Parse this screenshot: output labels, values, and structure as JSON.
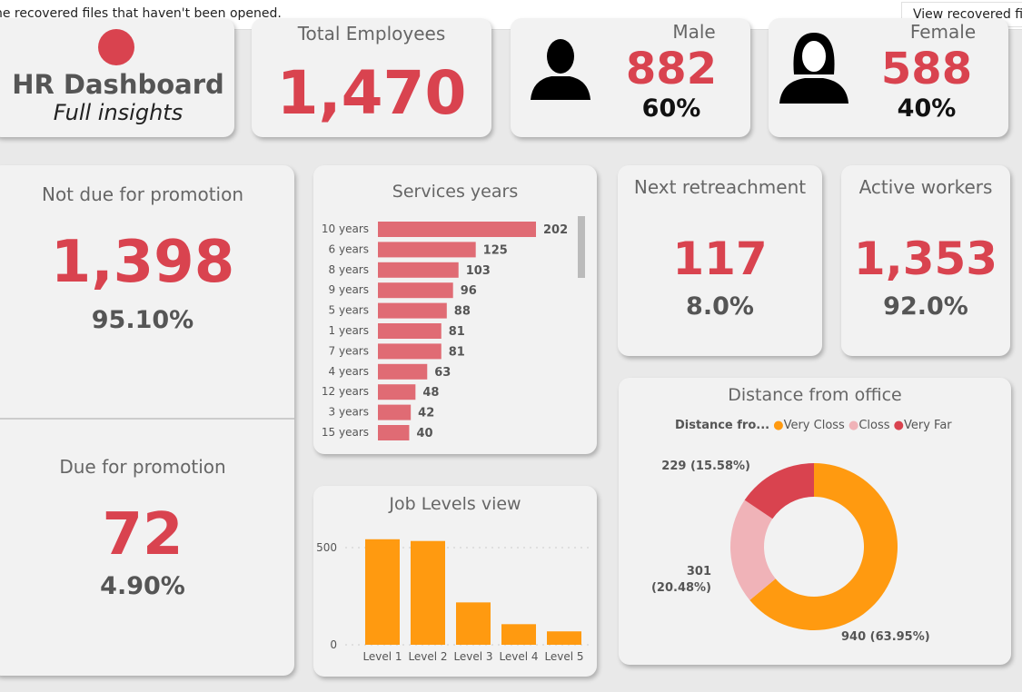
{
  "notification": {
    "message": "he recovered files that haven't been opened.",
    "button": "View recovered files"
  },
  "title": {
    "main": "HR Dashboard",
    "sub": "Full insights"
  },
  "total": {
    "label": "Total Employees",
    "value": "1,470"
  },
  "male": {
    "label": "Male",
    "value": "882",
    "pct": "60%",
    "icon": "male-user-icon"
  },
  "female": {
    "label": "Female",
    "value": "588",
    "pct": "40%",
    "icon": "female-user-icon"
  },
  "not_due": {
    "label": "Not due for promotion",
    "value": "1,398",
    "pct": "95.10%"
  },
  "due": {
    "label": "Due for promotion",
    "value": "72",
    "pct": "4.90%"
  },
  "retire": {
    "label": "Next retreachment",
    "value": "117",
    "pct": "8.0%"
  },
  "active": {
    "label": "Active workers",
    "value": "1,353",
    "pct": "92.0%"
  },
  "colors": {
    "accent": "#d9434f",
    "bar": "#e06b74",
    "orange": "#ff9a10",
    "pink": "#f0b3b8"
  },
  "chart_data": [
    {
      "type": "bar",
      "orientation": "horizontal",
      "title": "Services years",
      "categories": [
        "10 years",
        "6 years",
        "8 years",
        "9 years",
        "5 years",
        "1 years",
        "7 years",
        "4 years",
        "12 years",
        "3 years",
        "15 years"
      ],
      "values": [
        202,
        125,
        103,
        96,
        88,
        81,
        81,
        63,
        48,
        42,
        40
      ]
    },
    {
      "type": "bar",
      "title": "Job Levels view",
      "categories": [
        "Level 1",
        "Level 2",
        "Level 3",
        "Level 4",
        "Level 5"
      ],
      "values": [
        543,
        534,
        218,
        106,
        69
      ],
      "yticks": [
        "0",
        "500"
      ],
      "ylim": [
        0,
        560
      ],
      "grid": true
    },
    {
      "type": "pie",
      "donut": true,
      "title": "Distance from office",
      "legend_title": "Distance fro...",
      "legend_position": "top",
      "slices": [
        {
          "name": "Very Closs",
          "value": 940,
          "label": "940 (63.95%)",
          "color": "#ff9a10"
        },
        {
          "name": "Closs",
          "value": 301,
          "label": "301 (20.48%)",
          "color": "#f0b3b8"
        },
        {
          "name": "Very Far",
          "value": 229,
          "label": "229 (15.58%)",
          "color": "#d9434f"
        }
      ]
    }
  ]
}
